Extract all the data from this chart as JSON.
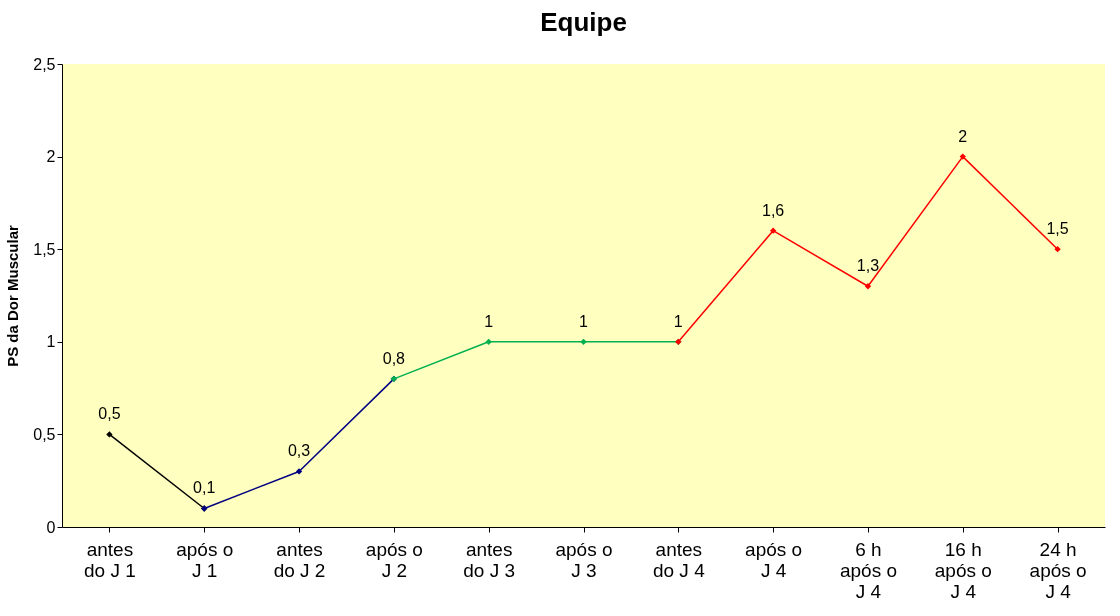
{
  "chart_data": {
    "type": "line",
    "title": "Equipe",
    "ylabel": "PS da Dor Muscular",
    "categories": [
      "antes do J 1",
      "após o J 1",
      "antes do J 2",
      "após o J 2",
      "antes do J 3",
      "após o J 3",
      "antes do J 4",
      "após o J 4",
      "6 h após o J 4",
      "16 h após o J 4",
      "24 h após o J 4"
    ],
    "series": [
      {
        "color": "#000000",
        "values": [
          0.5,
          0.1,
          null,
          null,
          null,
          null,
          null,
          null,
          null,
          null,
          null
        ],
        "value_labels": [
          "0,5",
          "0,1",
          null,
          null,
          null,
          null,
          null,
          null,
          null,
          null,
          null
        ]
      },
      {
        "color": "#000080",
        "values": [
          null,
          0.1,
          0.3,
          0.8,
          null,
          null,
          null,
          null,
          null,
          null,
          null
        ],
        "value_labels": [
          null,
          null,
          "0,3",
          "0,8",
          null,
          null,
          null,
          null,
          null,
          null,
          null
        ]
      },
      {
        "color": "#00b050",
        "values": [
          null,
          null,
          null,
          0.8,
          1,
          1,
          1,
          null,
          null,
          null,
          null
        ],
        "value_labels": [
          null,
          null,
          null,
          null,
          "1",
          "1",
          "1",
          null,
          null,
          null,
          null
        ]
      },
      {
        "color": "#ff0000",
        "values": [
          null,
          null,
          null,
          null,
          null,
          null,
          1,
          1.6,
          1.3,
          2,
          1.5
        ],
        "value_labels": [
          null,
          null,
          null,
          null,
          null,
          null,
          null,
          "1,6",
          "1,3",
          "2",
          "1,5"
        ]
      }
    ],
    "ylim": [
      0,
      2.5
    ],
    "yticks": [
      0,
      {
        "value": 0.5,
        "label": "0,5"
      },
      1,
      {
        "value": 1.5,
        "label": "1,5"
      },
      2,
      {
        "value": 2.5,
        "label": "2,5"
      }
    ],
    "grid": false,
    "marker": "diamond",
    "line_style": "solid"
  }
}
